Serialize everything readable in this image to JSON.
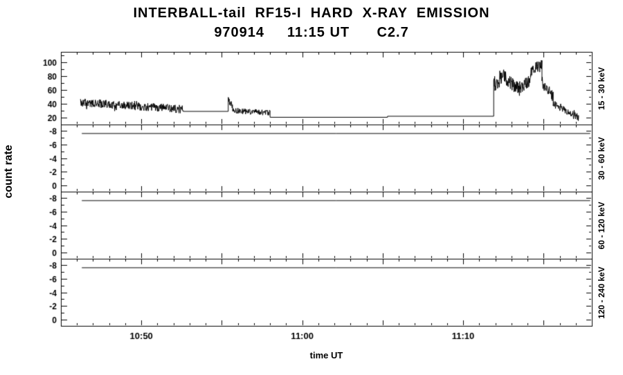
{
  "chart_data": {
    "type": "line",
    "title": "INTERBALL-tail  RF15-I  HARD  X-RAY  EMISSION",
    "subtitle": "970914     11:15 UT      C2.7",
    "xlabel": "time UT",
    "ylabel": "count rate",
    "line_color": "#000000",
    "x_axis": {
      "start_minutes": 645,
      "end_minutes": 678,
      "major_tick_minutes": 5,
      "minor_tick_minutes": 1,
      "ticks": [
        {
          "m": 650,
          "label": "10:50"
        },
        {
          "m": 660,
          "label": "11:00"
        },
        {
          "m": 670,
          "label": "11:10"
        }
      ]
    },
    "panels": [
      {
        "label": "15 - 30 keV",
        "ymin": 10,
        "ymax": 115,
        "yticks": [
          20,
          40,
          60,
          80,
          100
        ],
        "yminor": [
          30,
          50,
          70,
          90,
          110
        ],
        "segments": [
          {
            "kind": "noisy",
            "t0": 646.2,
            "t1": 652.6,
            "v0": 42,
            "v1": 32,
            "noise": 6
          },
          {
            "kind": "flat",
            "t0": 652.6,
            "t1": 655.4,
            "v": 29
          },
          {
            "kind": "noisy",
            "t0": 655.4,
            "t1": 655.7,
            "v0": 46,
            "v1": 32,
            "noise": 6
          },
          {
            "kind": "noisy",
            "t0": 655.7,
            "t1": 658.0,
            "v0": 30,
            "v1": 27,
            "noise": 4
          },
          {
            "kind": "flat",
            "t0": 658.0,
            "t1": 665.3,
            "v": 20.5
          },
          {
            "kind": "flat",
            "t0": 665.3,
            "t1": 671.9,
            "v": 22
          },
          {
            "kind": "noisy",
            "t0": 671.9,
            "t1": 672.6,
            "v0": 68,
            "v1": 80,
            "noise": 11
          },
          {
            "kind": "noisy",
            "t0": 672.6,
            "t1": 673.5,
            "v0": 78,
            "v1": 60,
            "noise": 10
          },
          {
            "kind": "noisy",
            "t0": 673.5,
            "t1": 674.2,
            "v0": 62,
            "v1": 75,
            "noise": 9
          },
          {
            "kind": "noisy",
            "t0": 674.2,
            "t1": 674.9,
            "v0": 85,
            "v1": 96,
            "noise": 8
          },
          {
            "kind": "noisy",
            "t0": 674.9,
            "t1": 675.6,
            "v0": 72,
            "v1": 50,
            "noise": 8
          },
          {
            "kind": "noisy",
            "t0": 675.6,
            "t1": 677.2,
            "v0": 40,
            "v1": 20,
            "noise": 5
          }
        ]
      },
      {
        "label": "30 - 60 keV",
        "ymin": -8,
        "ymax": 0,
        "yticks": [
          -8,
          -6,
          -4,
          -2,
          0
        ],
        "yminor": [
          -7,
          -5,
          -3,
          -1
        ],
        "segments": [
          {
            "kind": "flat",
            "t0": 646.3,
            "t1": 677.9,
            "v": -7.6
          }
        ]
      },
      {
        "label": "60 - 120 keV",
        "ymin": -8,
        "ymax": 0,
        "yticks": [
          -8,
          -6,
          -4,
          -2,
          0
        ],
        "yminor": [
          -7,
          -5,
          -3,
          -1
        ],
        "segments": [
          {
            "kind": "flat",
            "t0": 646.3,
            "t1": 677.9,
            "v": -7.6
          }
        ]
      },
      {
        "label": "120 - 240 keV",
        "ymin": -8,
        "ymax": 0,
        "yticks": [
          -8,
          -6,
          -4,
          -2,
          0
        ],
        "yminor": [
          -7,
          -5,
          -3,
          -1
        ],
        "segments": [
          {
            "kind": "flat",
            "t0": 646.3,
            "t1": 677.9,
            "v": -7.6
          }
        ]
      }
    ]
  }
}
